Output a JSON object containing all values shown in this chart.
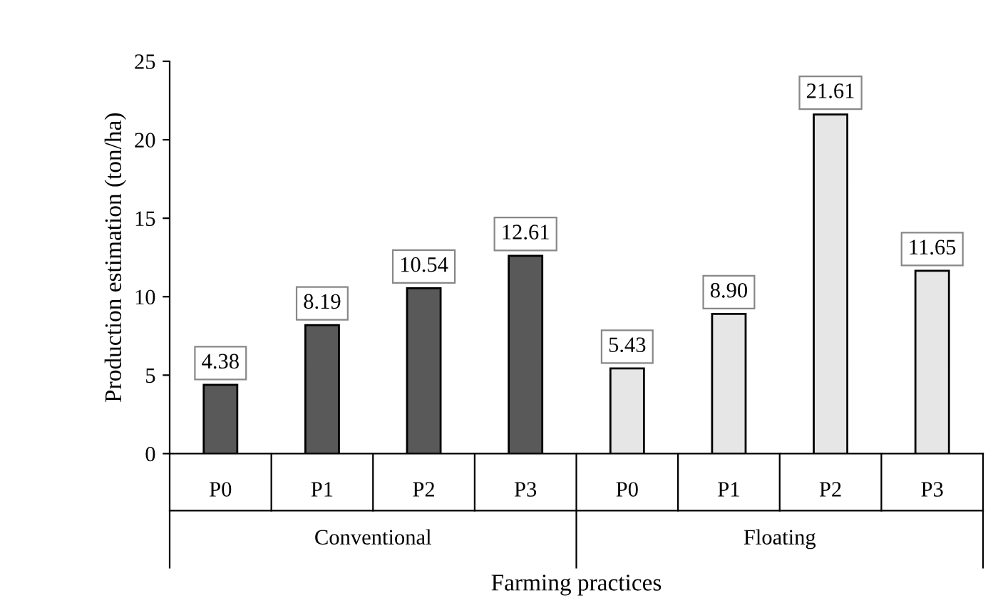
{
  "chart_data": {
    "type": "bar",
    "xlabel": "Farming practices",
    "ylabel": "Production estimation (ton/ha)",
    "categories": [
      "P0",
      "P1",
      "P2",
      "P3",
      "P0",
      "P1",
      "P2",
      "P3"
    ],
    "values": [
      4.38,
      8.19,
      10.54,
      12.61,
      5.43,
      8.9,
      21.61,
      11.65
    ],
    "value_labels": [
      "4.38",
      "8.19",
      "10.54",
      "12.61",
      "5.43",
      "8.90",
      "21.61",
      "11.65"
    ],
    "colors": [
      "#595959",
      "#595959",
      "#595959",
      "#595959",
      "#e6e6e6",
      "#e6e6e6",
      "#e6e6e6",
      "#e6e6e6"
    ],
    "annotations": [
      "Conventional",
      "Floating"
    ],
    "ylim": [
      0,
      25
    ],
    "yticks": [
      0,
      5,
      10,
      15,
      20,
      25
    ],
    "grid": false,
    "legend": false
  }
}
